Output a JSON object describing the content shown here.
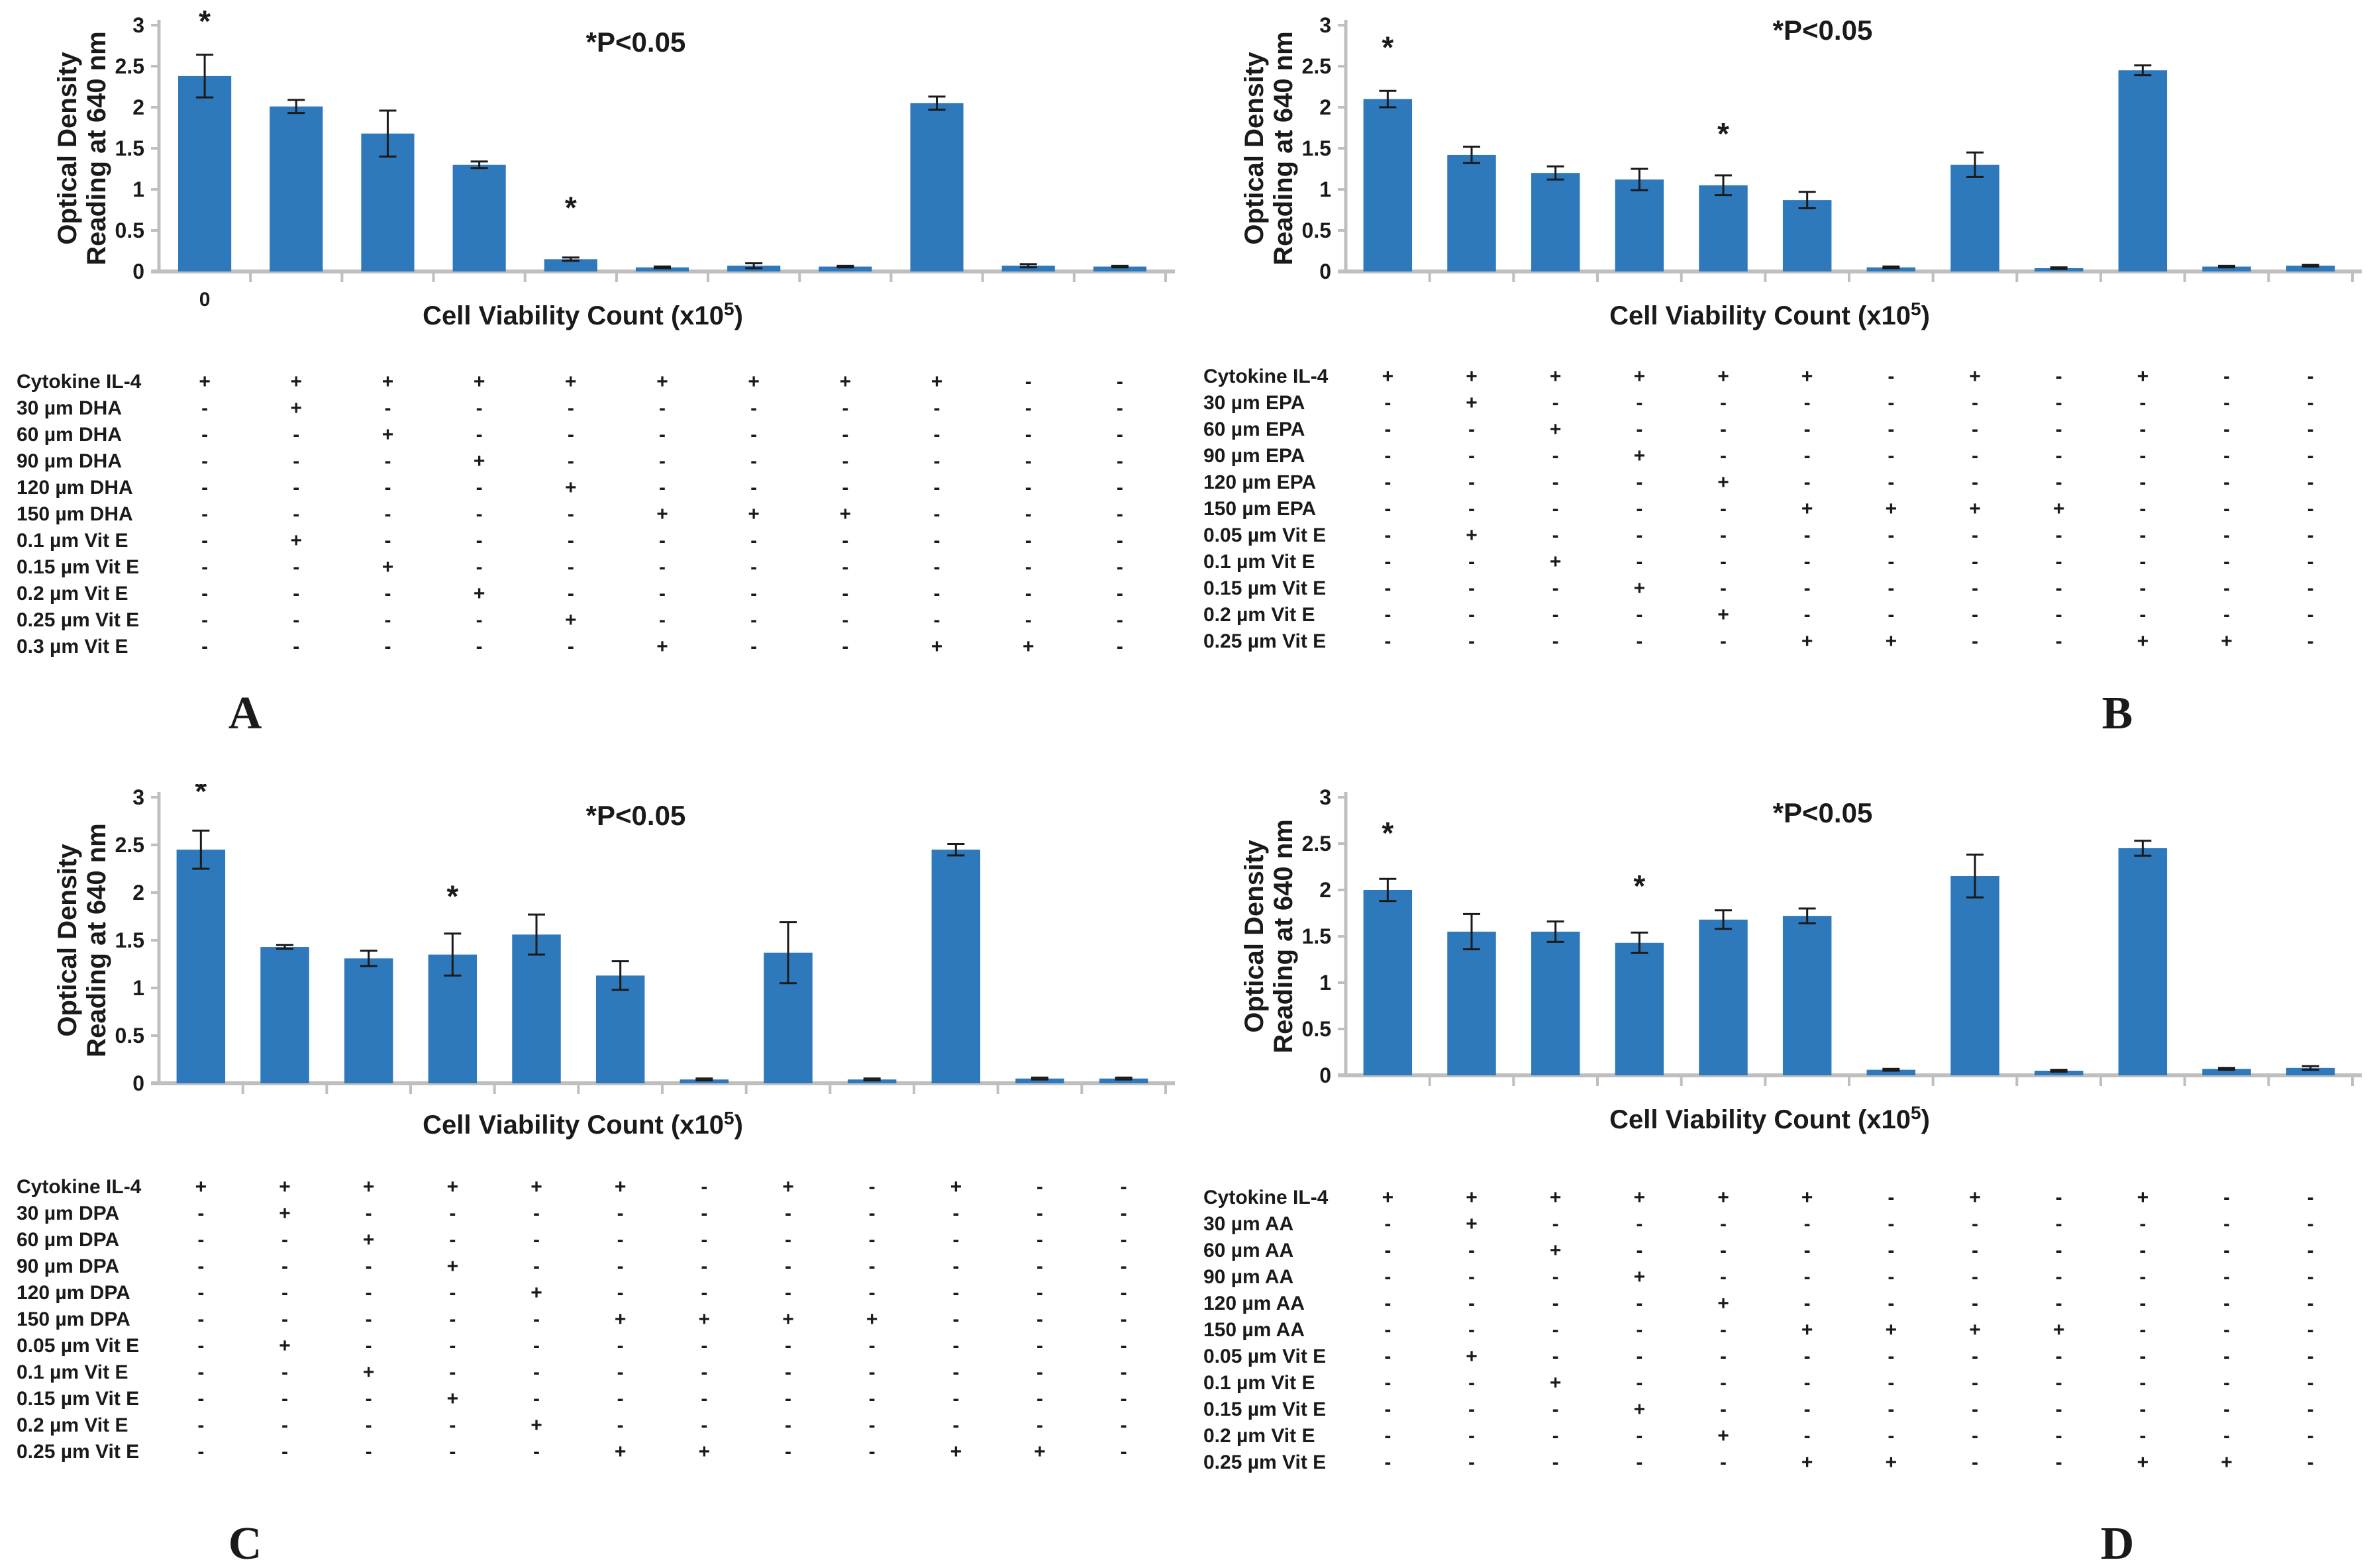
{
  "figure": {
    "y_axis_title_line1": "Optical Density",
    "y_axis_title_line2": "Reading at 640 nm",
    "x_axis_title_main": "Cell Viability Count (x10",
    "x_axis_title_sup": "5",
    "x_axis_title_end": ")",
    "significance_note": "*P<0.05",
    "bar_color": "#2E78BC",
    "axis_color": "#BFBFBF",
    "error_bar_color": "#1a1a1a",
    "text_color": "#1a1a1a"
  },
  "chart_data": [
    {
      "panel_label": "A",
      "type": "bar",
      "title": "",
      "ylabel": "Optical Density Reading at 640 nm",
      "xlabel": "Cell Viability Count (x10^5)",
      "ylim": [
        0,
        3
      ],
      "yticks": [
        "0",
        "0.5",
        "1",
        "1.5",
        "2",
        "2.5",
        "3"
      ],
      "annotation": "*P<0.05",
      "first_bar_x_label": "0",
      "values": [
        2.38,
        2.01,
        1.68,
        1.3,
        0.15,
        0.05,
        0.07,
        0.06,
        2.05,
        0.07,
        0.06
      ],
      "errors": [
        0.26,
        0.08,
        0.28,
        0.04,
        0.02,
        0.01,
        0.03,
        0.01,
        0.08,
        0.02,
        0.01
      ],
      "significant_bars": [
        0,
        4
      ],
      "treatment_table": {
        "rows": [
          {
            "label": "Cytokine IL-4",
            "cells": [
              "+",
              "+",
              "+",
              "+",
              "+",
              "+",
              "+",
              "+",
              "+",
              "-",
              "-"
            ]
          },
          {
            "label": "30 µm DHA",
            "cells": [
              "-",
              "+",
              "-",
              "-",
              "-",
              "-",
              "-",
              "-",
              "-",
              "-",
              "-"
            ]
          },
          {
            "label": "60 µm DHA",
            "cells": [
              "-",
              "-",
              "+",
              "-",
              "-",
              "-",
              "-",
              "-",
              "-",
              "-",
              "-"
            ]
          },
          {
            "label": "90 µm DHA",
            "cells": [
              "-",
              "-",
              "-",
              "+",
              "-",
              "-",
              "-",
              "-",
              "-",
              "-",
              "-"
            ]
          },
          {
            "label": "120 µm DHA",
            "cells": [
              "-",
              "-",
              "-",
              "-",
              "+",
              "-",
              "-",
              "-",
              "-",
              "-",
              "-"
            ]
          },
          {
            "label": "150 µm DHA",
            "cells": [
              "-",
              "-",
              "-",
              "-",
              "-",
              "+",
              "+",
              "+",
              "-",
              "-",
              "-"
            ]
          },
          {
            "label": "0.1 µm Vit E",
            "cells": [
              "-",
              "+",
              "-",
              "-",
              "-",
              "-",
              "-",
              "-",
              "-",
              "-",
              "-"
            ]
          },
          {
            "label": "0.15 µm Vit E",
            "cells": [
              "-",
              "-",
              "+",
              "-",
              "-",
              "-",
              "-",
              "-",
              "-",
              "-",
              "-"
            ]
          },
          {
            "label": "0.2 µm Vit E",
            "cells": [
              "-",
              "-",
              "-",
              "+",
              "-",
              "-",
              "-",
              "-",
              "-",
              "-",
              "-"
            ]
          },
          {
            "label": "0.25 µm Vit E",
            "cells": [
              "-",
              "-",
              "-",
              "-",
              "+",
              "-",
              "-",
              "-",
              "-",
              "-",
              "-"
            ]
          },
          {
            "label": "0.3 µm Vit E",
            "cells": [
              "-",
              "-",
              "-",
              "-",
              "-",
              "+",
              "-",
              "-",
              "+",
              "+",
              "-"
            ]
          }
        ]
      }
    },
    {
      "panel_label": "B",
      "type": "bar",
      "title": "",
      "ylabel": "Optical Density Reading at 640 nm",
      "xlabel": "Cell Viability Count (x10^5)",
      "ylim": [
        0,
        3
      ],
      "yticks": [
        "0",
        "0.5",
        "1",
        "1.5",
        "2",
        "2.5",
        "3"
      ],
      "annotation": "*P<0.05",
      "first_bar_x_label": "",
      "values": [
        2.1,
        1.42,
        1.2,
        1.12,
        1.05,
        0.87,
        0.05,
        1.3,
        0.04,
        2.45,
        0.06,
        0.07
      ],
      "errors": [
        0.1,
        0.1,
        0.08,
        0.13,
        0.12,
        0.1,
        0.01,
        0.15,
        0.01,
        0.06,
        0.01,
        0.01
      ],
      "significant_bars": [
        0,
        4
      ],
      "treatment_table": {
        "rows": [
          {
            "label": "Cytokine IL-4",
            "cells": [
              "+",
              "+",
              "+",
              "+",
              "+",
              "+",
              "-",
              "+",
              "-",
              "+",
              "-",
              "-"
            ]
          },
          {
            "label": "30 µm EPA",
            "cells": [
              "-",
              "+",
              "-",
              "-",
              "-",
              "-",
              "-",
              "-",
              "-",
              "-",
              "-",
              "-"
            ]
          },
          {
            "label": "60 µm EPA",
            "cells": [
              "-",
              "-",
              "+",
              "-",
              "-",
              "-",
              "-",
              "-",
              "-",
              "-",
              "-",
              "-"
            ]
          },
          {
            "label": "90 µm EPA",
            "cells": [
              "-",
              "-",
              "-",
              "+",
              "-",
              "-",
              "-",
              "-",
              "-",
              "-",
              "-",
              "-"
            ]
          },
          {
            "label": "120 µm EPA",
            "cells": [
              "-",
              "-",
              "-",
              "-",
              "+",
              "-",
              "-",
              "-",
              "-",
              "-",
              "-",
              "-"
            ]
          },
          {
            "label": "150 µm EPA",
            "cells": [
              "-",
              "-",
              "-",
              "-",
              "-",
              "+",
              "+",
              "+",
              "+",
              "-",
              "-",
              "-"
            ]
          },
          {
            "label": "0.05 µm Vit E",
            "cells": [
              "-",
              "+",
              "-",
              "-",
              "-",
              "-",
              "-",
              "-",
              "-",
              "-",
              "-",
              "-"
            ]
          },
          {
            "label": "0.1 µm Vit E",
            "cells": [
              "-",
              "-",
              "+",
              "-",
              "-",
              "-",
              "-",
              "-",
              "-",
              "-",
              "-",
              "-"
            ]
          },
          {
            "label": "0.15 µm Vit E",
            "cells": [
              "-",
              "-",
              "-",
              "+",
              "-",
              "-",
              "-",
              "-",
              "-",
              "-",
              "-",
              "-"
            ]
          },
          {
            "label": "0.2 µm Vit E",
            "cells": [
              "-",
              "-",
              "-",
              "-",
              "+",
              "-",
              "-",
              "-",
              "-",
              "-",
              "-",
              "-"
            ]
          },
          {
            "label": "0.25 µm Vit E",
            "cells": [
              "-",
              "-",
              "-",
              "-",
              "-",
              "+",
              "+",
              "-",
              "-",
              "+",
              "+",
              "-"
            ]
          }
        ]
      }
    },
    {
      "panel_label": "C",
      "type": "bar",
      "title": "",
      "ylabel": "Optical Density Reading at 640 nm",
      "xlabel": "Cell Viability Count (x10^5)",
      "ylim": [
        0,
        3
      ],
      "yticks": [
        "0",
        "0.5",
        "1",
        "1.5",
        "2",
        "2.5",
        "3"
      ],
      "annotation": "*P<0.05",
      "first_bar_x_label": "",
      "values": [
        2.45,
        1.43,
        1.31,
        1.35,
        1.56,
        1.13,
        0.04,
        1.37,
        0.04,
        2.45,
        0.05,
        0.05
      ],
      "errors": [
        0.2,
        0.02,
        0.08,
        0.22,
        0.21,
        0.15,
        0.01,
        0.32,
        0.01,
        0.06,
        0.01,
        0.01
      ],
      "significant_bars": [
        0,
        3
      ],
      "treatment_table": {
        "rows": [
          {
            "label": "Cytokine IL-4",
            "cells": [
              "+",
              "+",
              "+",
              "+",
              "+",
              "+",
              "-",
              "+",
              "-",
              "+",
              "-",
              "-"
            ]
          },
          {
            "label": "30 µm DPA",
            "cells": [
              "-",
              "+",
              "-",
              "-",
              "-",
              "-",
              "-",
              "-",
              "-",
              "-",
              "-",
              "-"
            ]
          },
          {
            "label": "60 µm DPA",
            "cells": [
              "-",
              "-",
              "+",
              "-",
              "-",
              "-",
              "-",
              "-",
              "-",
              "-",
              "-",
              "-"
            ]
          },
          {
            "label": "90 µm DPA",
            "cells": [
              "-",
              "-",
              "-",
              "+",
              "-",
              "-",
              "-",
              "-",
              "-",
              "-",
              "-",
              "-"
            ]
          },
          {
            "label": "120 µm DPA",
            "cells": [
              "-",
              "-",
              "-",
              "-",
              "+",
              "-",
              "-",
              "-",
              "-",
              "-",
              "-",
              "-"
            ]
          },
          {
            "label": "150 µm DPA",
            "cells": [
              "-",
              "-",
              "-",
              "-",
              "-",
              "+",
              "+",
              "+",
              "+",
              "-",
              "-",
              "-"
            ]
          },
          {
            "label": "0.05 µm Vit E",
            "cells": [
              "-",
              "+",
              "-",
              "-",
              "-",
              "-",
              "-",
              "-",
              "-",
              "-",
              "-",
              "-"
            ]
          },
          {
            "label": "0.1 µm Vit E",
            "cells": [
              "-",
              "-",
              "+",
              "-",
              "-",
              "-",
              "-",
              "-",
              "-",
              "-",
              "-",
              "-"
            ]
          },
          {
            "label": "0.15 µm Vit E",
            "cells": [
              "-",
              "-",
              "-",
              "+",
              "-",
              "-",
              "-",
              "-",
              "-",
              "-",
              "-",
              "-"
            ]
          },
          {
            "label": "0.2 µm Vit E",
            "cells": [
              "-",
              "-",
              "-",
              "-",
              "+",
              "-",
              "-",
              "-",
              "-",
              "-",
              "-",
              "-"
            ]
          },
          {
            "label": "0.25 µm Vit E",
            "cells": [
              "-",
              "-",
              "-",
              "-",
              "-",
              "+",
              "+",
              "-",
              "-",
              "+",
              "+",
              "-"
            ]
          }
        ]
      }
    },
    {
      "panel_label": "D",
      "type": "bar",
      "title": "",
      "ylabel": "Optical Density Reading at 640 nm",
      "xlabel": "Cell Viability Count (x10^5)",
      "ylim": [
        0,
        3
      ],
      "yticks": [
        "0",
        "0.5",
        "1",
        "1.5",
        "2",
        "2.5",
        "3"
      ],
      "annotation": "*P<0.05",
      "first_bar_x_label": "",
      "values": [
        2.0,
        1.55,
        1.55,
        1.43,
        1.68,
        1.72,
        0.06,
        2.15,
        0.05,
        2.45,
        0.07,
        0.08
      ],
      "errors": [
        0.12,
        0.19,
        0.11,
        0.11,
        0.1,
        0.08,
        0.01,
        0.23,
        0.01,
        0.08,
        0.01,
        0.02
      ],
      "significant_bars": [
        0,
        3
      ],
      "treatment_table": {
        "rows": [
          {
            "label": "Cytokine IL-4",
            "cells": [
              "+",
              "+",
              "+",
              "+",
              "+",
              "+",
              "-",
              "+",
              "-",
              "+",
              "-",
              "-"
            ]
          },
          {
            "label": "30 µm AA",
            "cells": [
              "-",
              "+",
              "-",
              "-",
              "-",
              "-",
              "-",
              "-",
              "-",
              "-",
              "-",
              "-"
            ]
          },
          {
            "label": "60 µm AA",
            "cells": [
              "-",
              "-",
              "+",
              "-",
              "-",
              "-",
              "-",
              "-",
              "-",
              "-",
              "-",
              "-"
            ]
          },
          {
            "label": "90 µm AA",
            "cells": [
              "-",
              "-",
              "-",
              "+",
              "-",
              "-",
              "-",
              "-",
              "-",
              "-",
              "-",
              "-"
            ]
          },
          {
            "label": "120 µm AA",
            "cells": [
              "-",
              "-",
              "-",
              "-",
              "+",
              "-",
              "-",
              "-",
              "-",
              "-",
              "-",
              "-"
            ]
          },
          {
            "label": "150 µm AA",
            "cells": [
              "-",
              "-",
              "-",
              "-",
              "-",
              "+",
              "+",
              "+",
              "+",
              "-",
              "-",
              "-"
            ]
          },
          {
            "label": "0.05 µm Vit E",
            "cells": [
              "-",
              "+",
              "-",
              "-",
              "-",
              "-",
              "-",
              "-",
              "-",
              "-",
              "-",
              "-"
            ]
          },
          {
            "label": "0.1 µm Vit E",
            "cells": [
              "-",
              "-",
              "+",
              "-",
              "-",
              "-",
              "-",
              "-",
              "-",
              "-",
              "-",
              "-"
            ]
          },
          {
            "label": "0.15 µm Vit E",
            "cells": [
              "-",
              "-",
              "-",
              "+",
              "-",
              "-",
              "-",
              "-",
              "-",
              "-",
              "-",
              "-"
            ]
          },
          {
            "label": "0.2 µm Vit E",
            "cells": [
              "-",
              "-",
              "-",
              "-",
              "+",
              "-",
              "-",
              "-",
              "-",
              "-",
              "-",
              "-"
            ]
          },
          {
            "label": "0.25 µm Vit E",
            "cells": [
              "-",
              "-",
              "-",
              "-",
              "-",
              "+",
              "+",
              "-",
              "-",
              "+",
              "+",
              "-"
            ]
          }
        ]
      }
    }
  ]
}
